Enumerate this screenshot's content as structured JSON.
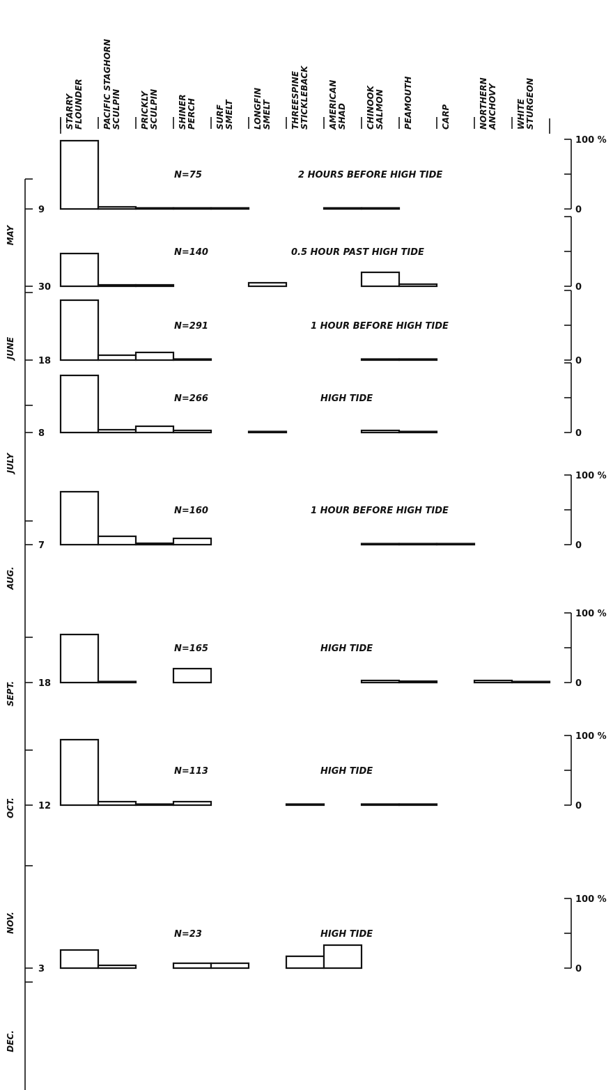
{
  "chart_data": {
    "type": "bar",
    "species": [
      [
        "STARRY",
        "FLOUNDER"
      ],
      [
        "PACIFIC STAGHORN",
        "SCULPIN"
      ],
      [
        "PRICKLY",
        "SCULPIN"
      ],
      [
        "SHINER",
        "PERCH"
      ],
      [
        "SURF",
        "SMELT"
      ],
      [
        "LONGFIN",
        "SMELT"
      ],
      [
        "THREESPINE",
        "STICKLEBACK"
      ],
      [
        "AMERICAN",
        "SHAD"
      ],
      [
        "CHINOOK",
        "SALMON"
      ],
      [
        "PEAMOUTH"
      ],
      [
        "CARP"
      ],
      [
        "NORTHERN",
        "ANCHOVY"
      ],
      [
        "WHITE",
        "STURGEON"
      ]
    ],
    "months": [
      "MAY",
      "JUNE",
      "JULY",
      "AUG.",
      "SEPT.",
      "OCT.",
      "NOV.",
      "DEC."
    ],
    "scale_label_max": "100 %",
    "scale_label_min": "0",
    "samples": [
      {
        "day": "9",
        "n_label": "N=75",
        "tide": "2 HOURS BEFORE HIGH TIDE",
        "values": [
          98,
          3,
          0.5,
          0.5,
          0.5,
          null,
          null,
          0.5,
          0.5,
          null,
          null,
          null,
          null
        ]
      },
      {
        "day": "30",
        "n_label": "N=140",
        "tide": "0.5 HOUR PAST HIGH TIDE",
        "values": [
          47,
          2,
          2,
          null,
          null,
          5,
          null,
          null,
          20,
          3,
          null,
          null,
          null
        ]
      },
      {
        "day": "18",
        "n_label": "N=291",
        "tide": "1 HOUR BEFORE HIGH TIDE",
        "values": [
          86,
          7,
          11,
          1,
          null,
          null,
          null,
          null,
          0.5,
          0.5,
          null,
          null,
          null
        ]
      },
      {
        "day": "8",
        "n_label": "N=266",
        "tide": "HIGH TIDE",
        "values": [
          82,
          4,
          9,
          3,
          null,
          1,
          null,
          null,
          3,
          1,
          null,
          null,
          null
        ]
      },
      {
        "day": "7",
        "n_label": "N=160",
        "tide": "1 HOUR BEFORE HIGH TIDE",
        "values": [
          76,
          12,
          2,
          9,
          null,
          null,
          null,
          null,
          0.5,
          0.5,
          0.5,
          null,
          null
        ]
      },
      {
        "day": "18",
        "n_label": "N=165",
        "tide": "HIGH TIDE",
        "values": [
          69,
          0.5,
          null,
          20,
          null,
          null,
          null,
          null,
          3,
          2,
          null,
          3,
          1
        ]
      },
      {
        "day": "12",
        "n_label": "N=113",
        "tide": "HIGH TIDE",
        "values": [
          94,
          5,
          1,
          5,
          null,
          null,
          0.5,
          null,
          0.5,
          0.5,
          null,
          null,
          null
        ]
      },
      {
        "day": "3",
        "n_label": "N=23",
        "tide": "HIGH TIDE",
        "values": [
          26,
          4,
          null,
          7,
          7,
          null,
          17,
          33,
          null,
          null,
          null,
          null,
          null
        ]
      }
    ]
  }
}
